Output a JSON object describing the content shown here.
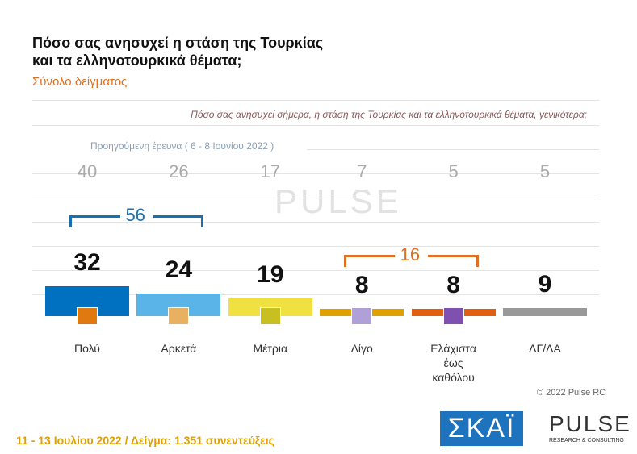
{
  "chart_data": {
    "type": "bar",
    "title": [
      "Πόσο σας ανησυχεί η στάση της Τουρκίας",
      "και τα ελληνοτουρκικά θέματα;"
    ],
    "subtitle": "Σύνολο δείγματος",
    "question": "Πόσο σας ανησυχεί σήμερα, η στάση της Τουρκίας και τα ελληνοτουρκικά θέματα, γενικότερα;",
    "categories": [
      "Πολύ",
      "Αρκετά",
      "Μέτρια",
      "Λίγο",
      "Ελάχιστα έως καθόλου",
      "ΔΓ/ΔΑ"
    ],
    "values": [
      32,
      24,
      19,
      8,
      8,
      9
    ],
    "colors": [
      "#0070c0",
      "#5ab4e8",
      "#f0e040",
      "#e0a000",
      "#e06010",
      "#999999"
    ],
    "previous": {
      "label": "Προηγούμενη έρευνα ( 6 - 8 Ιουνίου 2022 )",
      "values": [
        40,
        26,
        17,
        7,
        5,
        5
      ]
    },
    "groups": [
      {
        "value": 56,
        "members": [
          "Πολύ",
          "Αρκετά"
        ],
        "color": "#1a6fb0"
      },
      {
        "value": 16,
        "members": [
          "Λίγο",
          "Ελάχιστα έως καθόλου"
        ],
        "color": "#e07020"
      }
    ],
    "watermark": "PULSE",
    "copyright": "© 2022 Pulse RC",
    "footer": "11 - 13 Ιουλίου 2022 / Δείγμα: 1.351 συνεντεύξεις",
    "logos": [
      "ΣΚΑΪ",
      "PULSE",
      "RESEARCH & CONSULTING"
    ]
  }
}
